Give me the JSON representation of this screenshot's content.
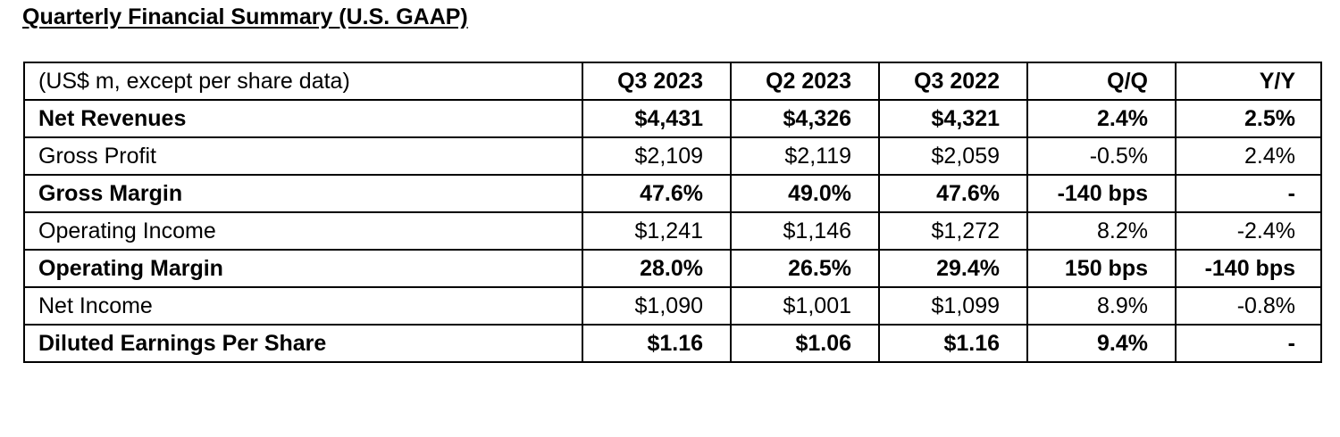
{
  "title": "Quarterly Financial Summary (U.S. GAAP)",
  "table": {
    "header": [
      "(US$ m, except per share data)",
      "Q3 2023",
      "Q2 2023",
      "Q3 2022",
      "Q/Q",
      "Y/Y"
    ],
    "rows": [
      {
        "cells": [
          "Net Revenues",
          "$4,431",
          "$4,326",
          "$4,321",
          "2.4%",
          "2.5%"
        ],
        "bold": true
      },
      {
        "cells": [
          "Gross Profit",
          "$2,109",
          "$2,119",
          "$2,059",
          "-0.5%",
          "2.4%"
        ],
        "bold": false
      },
      {
        "cells": [
          "Gross Margin",
          "47.6%",
          "49.0%",
          "47.6%",
          "-140 bps",
          "-"
        ],
        "bold": true
      },
      {
        "cells": [
          "Operating Income",
          "$1,241",
          "$1,146",
          "$1,272",
          "8.2%",
          "-2.4%"
        ],
        "bold": false
      },
      {
        "cells": [
          "Operating Margin",
          "28.0%",
          "26.5%",
          "29.4%",
          "150 bps",
          "-140 bps"
        ],
        "bold": true
      },
      {
        "cells": [
          "Net Income",
          "$1,090",
          "$1,001",
          "$1,099",
          "8.9%",
          "-0.8%"
        ],
        "bold": false
      },
      {
        "cells": [
          "Diluted Earnings Per Share",
          "$1.16",
          "$1.06",
          "$1.16",
          "9.4%",
          "-"
        ],
        "bold": true
      }
    ]
  }
}
